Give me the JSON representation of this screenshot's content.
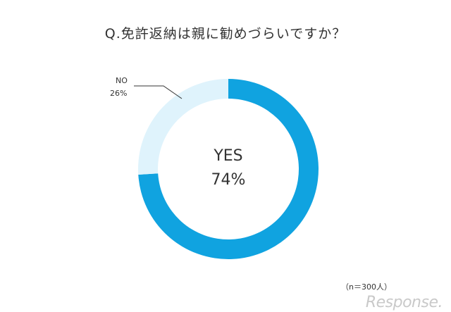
{
  "chart_data": {
    "type": "pie",
    "title": "Q.免許返納は親に勧めづらいですか？",
    "slices": [
      {
        "name": "YES",
        "label": "YES",
        "value": 74,
        "value_label": "74%",
        "color": "#10a3e0"
      },
      {
        "name": "NO",
        "label": "NO",
        "value": 26,
        "value_label": "26%",
        "color": "#dff3fc"
      }
    ],
    "donut": true,
    "sample_note": "（n＝300人）"
  },
  "watermark": "Response."
}
